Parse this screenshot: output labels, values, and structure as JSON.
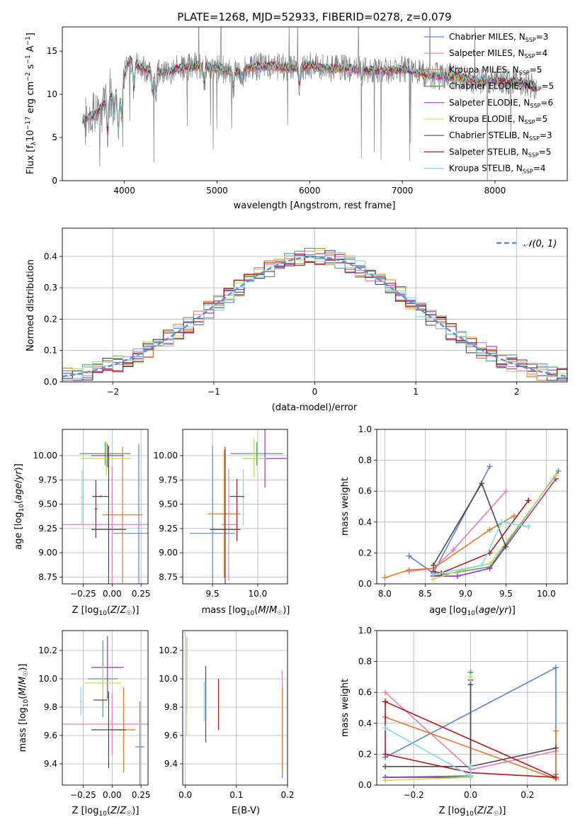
{
  "colors": {
    "c1": "#5b84dc",
    "c2": "#e87cbf",
    "c3": "#e07a2a",
    "c4": "#4f9d6f",
    "c5": "#9a2fbe",
    "c6": "#c6dc4d",
    "c7": "#4a4a4a",
    "c8": "#b3161c",
    "c9": "#7fd9e3",
    "gray": "#808080",
    "gauss": "#5b8fd8"
  },
  "chart_data": [
    {
      "type": "line",
      "title": "PLATE=1268, MJD=52933, FIBERID=0278, z=0.079",
      "xlabel": "wavelength [Angstrom, rest frame]",
      "ylabel": "Flux [f_λ10^-17 erg cm^-2 s^-1 A^-1]",
      "xlim": [
        3330,
        8780
      ],
      "ylim": [
        0,
        17.8
      ],
      "xticks": [
        "4000",
        "5000",
        "6000",
        "7000",
        "8000"
      ],
      "yticks": [
        "0",
        "5",
        "10",
        "15"
      ],
      "legend_position": "top-right",
      "legend": [
        {
          "name": "Chabrier MILES, N_SSP=3",
          "color": "c1"
        },
        {
          "name": "Salpeter MILES, N_SSP=4",
          "color": "c2"
        },
        {
          "name": "Kroupa MILES, N_SSP=5",
          "color": "c3"
        },
        {
          "name": "Chabrier ELODIE, N_SSP=5",
          "color": "c4"
        },
        {
          "name": "Salpeter ELODIE, N_SSP=6",
          "color": "c5"
        },
        {
          "name": "Kroupa ELODIE, N_SSP=5",
          "color": "c6"
        },
        {
          "name": "Chabrier STELIB, N_SSP=3",
          "color": "c7"
        },
        {
          "name": "Salpeter STELIB, N_SSP=5",
          "color": "c8"
        },
        {
          "name": "Kroupa STELIB, N_SSP=4",
          "color": "c9"
        }
      ],
      "continuum": [
        [
          3550,
          7.0
        ],
        [
          3700,
          7.8
        ],
        [
          3850,
          10.0
        ],
        [
          3950,
          10.5
        ],
        [
          4050,
          14.0
        ],
        [
          4200,
          13.0
        ],
        [
          4400,
          12.5
        ],
        [
          4600,
          13.0
        ],
        [
          4800,
          13.3
        ],
        [
          5000,
          13.0
        ],
        [
          5200,
          12.6
        ],
        [
          5400,
          13.2
        ],
        [
          5600,
          13.3
        ],
        [
          5800,
          13.0
        ],
        [
          6000,
          13.3
        ],
        [
          6200,
          13.0
        ],
        [
          6400,
          13.0
        ],
        [
          6600,
          12.8
        ],
        [
          6800,
          12.7
        ],
        [
          7000,
          12.9
        ],
        [
          7200,
          12.4
        ],
        [
          7400,
          12.1
        ],
        [
          7600,
          12.0
        ],
        [
          7800,
          11.6
        ],
        [
          8000,
          11.6
        ],
        [
          8300,
          11.4
        ],
        [
          8450,
          10.8
        ]
      ]
    },
    {
      "type": "step",
      "xlabel": "(data-model)/error",
      "ylabel": "Normed distribution",
      "xlim": [
        -2.5,
        2.5
      ],
      "ylim": [
        0,
        0.49
      ],
      "xticks": [
        "−2",
        "−1",
        "0",
        "1",
        "2"
      ],
      "yticks": [
        "0.0",
        "0.1",
        "0.2",
        "0.3",
        "0.4"
      ],
      "gaussian_label": "𝒩(0, 1)",
      "gaussian": {
        "mean": 0,
        "sigma": 1
      }
    },
    {
      "type": "scatter",
      "xlabel": "Z [log10(Z/Z☉)]",
      "ylabel": "age  [log10(age/yr)]",
      "xlim": [
        -0.43,
        0.31
      ],
      "ylim": [
        8.68,
        10.27
      ],
      "xticks": [
        "−0.25",
        "0.00",
        "0.25"
      ],
      "yticks": [
        "8.75",
        "9.00",
        "9.25",
        "9.50",
        "9.75",
        "10.00"
      ],
      "points": [
        {
          "c": "c1",
          "x": 0.23,
          "y": 9.2,
          "xe": 0.22,
          "ye": 0.92
        },
        {
          "c": "c2",
          "x": 0.0,
          "y": 9.29,
          "xe": 0.43,
          "ye": 0.6
        },
        {
          "c": "c3",
          "x": 0.09,
          "y": 9.39,
          "xe": 0.17,
          "ye": 0.7
        },
        {
          "c": "c4",
          "x": -0.06,
          "y": 10.02,
          "xe": 0.22,
          "ye": 0.12
        },
        {
          "c": "c5",
          "x": -0.04,
          "y": 10.0,
          "xe": 0.14,
          "ye": 0.12
        },
        {
          "c": "c6",
          "x": -0.05,
          "y": 9.97,
          "xe": 0.22,
          "ye": 0.18
        },
        {
          "c": "c7",
          "x": -0.03,
          "y": 9.24,
          "xe": 0.15,
          "ye": 0.86
        },
        {
          "c": "c8",
          "x": -0.14,
          "y": 9.45,
          "xe": 0.01,
          "ye": 0.3
        },
        {
          "c": "c9",
          "x": -0.26,
          "y": 9.57,
          "xe": 0.02,
          "ye": 0.28
        },
        {
          "c": "c7",
          "x": -0.1,
          "y": 9.58,
          "xe": 0.07,
          "ye": 0.01
        }
      ]
    },
    {
      "type": "scatter",
      "xlabel": "mass [log10(M/M☉)]",
      "ylabel": "",
      "xlim": [
        9.17,
        10.33
      ],
      "ylim": [
        8.68,
        10.27
      ],
      "xticks": [
        "9.5",
        "10.0"
      ],
      "yticks": [
        "8.75",
        "9.00",
        "9.25",
        "9.50",
        "9.75",
        "10.00"
      ],
      "points": [
        {
          "c": "c1",
          "x": 9.5,
          "y": 9.2,
          "xe": 0.25,
          "ye": 0.9
        },
        {
          "c": "c2",
          "x": 9.68,
          "y": 9.29,
          "xe": 0.08,
          "ye": 0.58
        },
        {
          "c": "c3",
          "x": 9.63,
          "y": 9.4,
          "xe": 0.18,
          "ye": 0.66
        },
        {
          "c": "c4",
          "x": 9.99,
          "y": 10.02,
          "xe": 0.29,
          "ye": 0.12
        },
        {
          "c": "c5",
          "x": 10.08,
          "y": 9.97,
          "xe": 0.24,
          "ye": 0.3
        },
        {
          "c": "c6",
          "x": 9.96,
          "y": 9.97,
          "xe": 0.13,
          "ye": 0.2
        },
        {
          "c": "c7",
          "x": 9.64,
          "y": 9.24,
          "xe": 0.17,
          "ye": 0.85
        },
        {
          "c": "c8",
          "x": 9.77,
          "y": 9.44,
          "xe": 0.0,
          "ye": 0.32
        },
        {
          "c": "c9",
          "x": 9.84,
          "y": 9.57,
          "xe": 0.01,
          "ye": 0.29
        },
        {
          "c": "c7",
          "x": 9.77,
          "y": 9.58,
          "xe": 0.08,
          "ye": 0.0
        }
      ]
    },
    {
      "type": "line",
      "xlabel": "age  [log10(age/yr)]",
      "ylabel": "mass weight",
      "xlim": [
        7.9,
        10.26
      ],
      "ylim": [
        0,
        1
      ],
      "xticks": [
        "8.0",
        "8.5",
        "9.0",
        "9.5",
        "10.0"
      ],
      "yticks": [
        "0.0",
        "0.2",
        "0.4",
        "0.6",
        "0.8",
        "1.0"
      ],
      "series": [
        {
          "c": "c1",
          "points": [
            [
              8.3,
              0.18
            ],
            [
              8.6,
              0.07
            ],
            [
              9.3,
              0.76
            ]
          ]
        },
        {
          "c": "c2",
          "points": [
            [
              8.3,
              0.08
            ],
            [
              8.6,
              0.1
            ],
            [
              8.85,
              0.22
            ],
            [
              9.5,
              0.6
            ]
          ]
        },
        {
          "c": "c3",
          "points": [
            [
              8.0,
              0.04
            ],
            [
              8.3,
              0.09
            ],
            [
              8.6,
              0.1
            ],
            [
              9.3,
              0.35
            ],
            [
              9.6,
              0.44
            ]
          ]
        },
        {
          "c": "c4",
          "points": [
            [
              8.6,
              0.05
            ],
            [
              9.3,
              0.11
            ],
            [
              10.15,
              0.73
            ]
          ]
        },
        {
          "c": "c5",
          "points": [
            [
              8.6,
              0.05
            ],
            [
              8.9,
              0.05
            ],
            [
              9.3,
              0.1
            ],
            [
              10.12,
              0.68
            ]
          ]
        },
        {
          "c": "c6",
          "points": [
            [
              8.6,
              0.03
            ],
            [
              8.95,
              0.09
            ],
            [
              9.3,
              0.13
            ],
            [
              10.12,
              0.7
            ]
          ]
        },
        {
          "c": "c7",
          "points": [
            [
              8.6,
              0.12
            ],
            [
              9.2,
              0.65
            ],
            [
              9.5,
              0.24
            ]
          ]
        },
        {
          "c": "c8",
          "points": [
            [
              8.6,
              0.08
            ],
            [
              8.7,
              0.07
            ],
            [
              9.3,
              0.2
            ],
            [
              9.78,
              0.54
            ]
          ]
        },
        {
          "c": "c9",
          "points": [
            [
              8.6,
              0.06
            ],
            [
              9.2,
              0.12
            ],
            [
              9.45,
              0.4
            ],
            [
              9.78,
              0.37
            ]
          ]
        }
      ]
    },
    {
      "type": "scatter",
      "xlabel": "Z [log10(Z/Z☉)]",
      "ylabel": "mass [log10(M/M☉)]",
      "xlim": [
        -0.43,
        0.31
      ],
      "ylim": [
        9.25,
        10.34
      ],
      "xticks": [
        "−0.25",
        "0.00",
        "0.25"
      ],
      "yticks": [
        "9.4",
        "9.6",
        "9.8",
        "10.0",
        "10.2"
      ],
      "points": [
        {
          "c": "c1",
          "x": 0.24,
          "y": 9.52,
          "xe": 0.04,
          "ye": 0.32
        },
        {
          "c": "c2",
          "x": 0.0,
          "y": 9.68,
          "xe": 0.43,
          "ye": 0.22
        },
        {
          "c": "c3",
          "x": 0.1,
          "y": 9.64,
          "xe": 0.1,
          "ye": 0.3
        },
        {
          "c": "c4",
          "x": -0.08,
          "y": 10.0,
          "xe": 0.13,
          "ye": 0.27
        },
        {
          "c": "c5",
          "x": -0.04,
          "y": 10.08,
          "xe": 0.14,
          "ye": 0.22
        },
        {
          "c": "c6",
          "x": -0.08,
          "y": 9.97,
          "xe": 0.16,
          "ye": 0.12
        },
        {
          "c": "c7",
          "x": -0.03,
          "y": 9.64,
          "xe": 0.15,
          "ye": 0.27
        },
        {
          "c": "c8",
          "x": -0.14,
          "y": 9.85,
          "xe": 0.0,
          "ye": 0.0
        },
        {
          "c": "c9",
          "x": -0.27,
          "y": 9.84,
          "xe": 0.01,
          "ye": 0.1
        },
        {
          "c": "c7",
          "x": -0.1,
          "y": 9.85,
          "xe": 0.06,
          "ye": 0.0
        }
      ]
    },
    {
      "type": "scatter",
      "xlabel": "E(B-V)",
      "ylabel": "",
      "xlim": [
        -0.005,
        0.2
      ],
      "ylim": [
        9.25,
        10.34
      ],
      "xticks": [
        "0.0",
        "0.1",
        "0.2"
      ],
      "yticks": [
        "9.4",
        "9.6",
        "9.8",
        "10.0",
        "10.2"
      ],
      "points": [
        {
          "c": "c1",
          "x": 0.19,
          "y": 9.55,
          "ye": 0.25
        },
        {
          "c": "c2",
          "x": 0.19,
          "y": 9.7,
          "ye": 0.36
        },
        {
          "c": "c3",
          "x": 0.19,
          "y": 9.64,
          "ye": 0.3
        },
        {
          "c": "c4",
          "x": 0.003,
          "y": 10.0,
          "ye": 0.25
        },
        {
          "c": "c5",
          "x": 0.003,
          "y": 10.15,
          "ye": 0.14
        },
        {
          "c": "c6",
          "x": 0.003,
          "y": 9.95,
          "ye": 0.35
        },
        {
          "c": "c7",
          "x": 0.04,
          "y": 9.82,
          "ye": 0.27
        },
        {
          "c": "c8",
          "x": 0.065,
          "y": 9.82,
          "ye": 0.18
        },
        {
          "c": "c9",
          "x": 0.037,
          "y": 9.84,
          "ye": 0.14
        }
      ]
    },
    {
      "type": "line",
      "xlabel": "Z [log10(Z/Z☉)]",
      "ylabel": "mass weight",
      "xlim": [
        -0.33,
        0.34
      ],
      "ylim": [
        0,
        1
      ],
      "xticks": [
        "−0.2",
        "0.0",
        "0.2"
      ],
      "yticks": [
        "0.0",
        "0.2",
        "0.4",
        "0.6",
        "0.8",
        "1.0"
      ],
      "series": [
        {
          "c": "c1",
          "points": [
            [
              -0.3,
              0.18
            ],
            [
              0.3,
              0.76
            ],
            [
              0.3,
              0.07
            ]
          ]
        },
        {
          "c": "c2",
          "points": [
            [
              -0.3,
              0.6
            ],
            [
              0.0,
              0.1
            ],
            [
              0.3,
              0.22
            ]
          ]
        },
        {
          "c": "c3",
          "points": [
            [
              -0.3,
              0.44
            ],
            [
              0.3,
              0.04
            ],
            [
              0.3,
              0.35
            ]
          ]
        },
        {
          "c": "c4",
          "points": [
            [
              -0.3,
              0.05
            ],
            [
              0.0,
              0.06
            ],
            [
              0.0,
              0.73
            ]
          ]
        },
        {
          "c": "c5",
          "points": [
            [
              -0.3,
              0.05
            ],
            [
              0.0,
              0.05
            ],
            [
              0.0,
              0.68
            ]
          ]
        },
        {
          "c": "c6",
          "points": [
            [
              -0.3,
              0.03
            ],
            [
              0.0,
              0.05
            ],
            [
              0.0,
              0.7
            ]
          ]
        },
        {
          "c": "c7",
          "points": [
            [
              -0.3,
              0.12
            ],
            [
              0.0,
              0.12
            ],
            [
              0.0,
              0.65
            ],
            [
              0.0,
              0.12
            ],
            [
              0.3,
              0.24
            ]
          ]
        },
        {
          "c": "c8",
          "points": [
            [
              -0.3,
              0.54
            ],
            [
              -0.3,
              0.2
            ],
            [
              0.0,
              0.08
            ],
            [
              0.3,
              0.05
            ],
            [
              -0.3,
              0.54
            ]
          ]
        },
        {
          "c": "c9",
          "points": [
            [
              -0.3,
              0.37
            ],
            [
              0.0,
              0.06
            ],
            [
              0.0,
              0.12
            ]
          ]
        }
      ]
    }
  ]
}
